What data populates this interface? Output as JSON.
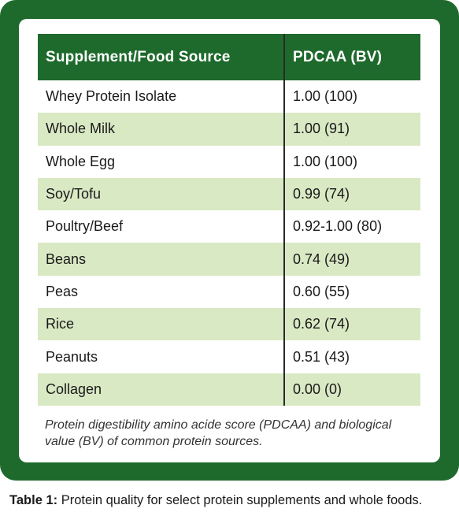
{
  "table": {
    "headers": [
      "Supplement/Food Source",
      "PDCAA (BV)"
    ],
    "rows": [
      [
        "Whey Protein Isolate",
        "1.00 (100)"
      ],
      [
        "Whole Milk",
        "1.00 (91)"
      ],
      [
        "Whole Egg",
        "1.00 (100)"
      ],
      [
        "Soy/Tofu",
        "0.99 (74)"
      ],
      [
        "Poultry/Beef",
        "0.92-1.00 (80)"
      ],
      [
        "Beans",
        "0.74 (49)"
      ],
      [
        "Peas",
        "0.60 (55)"
      ],
      [
        "Rice",
        "0.62 (74)"
      ],
      [
        "Peanuts",
        "0.51 (43)"
      ],
      [
        "Collagen",
        "0.00 (0)"
      ]
    ]
  },
  "footnote": "Protein digestibility amino acide score (PDCAA) and biological value (BV) of common protein sources.",
  "caption": {
    "label": "Table 1:",
    "text": " Protein quality for select protein supplements and whole foods."
  },
  "colors": {
    "frame_green": "#1e6a2c",
    "header_green": "#1e6a2c",
    "stripe_green": "#d9e9c4"
  }
}
